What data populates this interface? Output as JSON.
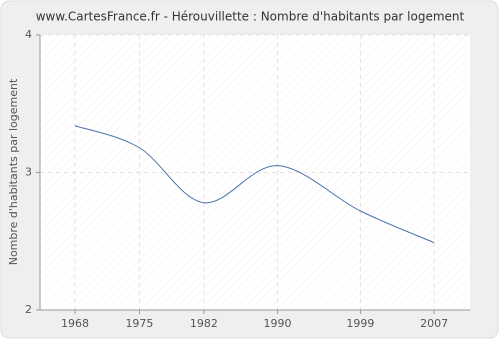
{
  "chart_data": {
    "type": "line",
    "title": "www.CartesFrance.fr - Hérouvillette : Nombre d'habitants par logement",
    "y_label": "Nombre d'habitants par logement",
    "x": [
      1968,
      1975,
      1982,
      1990,
      1999,
      2007
    ],
    "series": [
      {
        "name": "Nombre d'habitants par logement",
        "color": "#4a74a8",
        "values": [
          3.34,
          3.18,
          2.78,
          3.05,
          2.72,
          2.49
        ]
      }
    ],
    "xlim": [
      1964.2,
      2010.9
    ],
    "xticks": [
      1968,
      1975,
      1982,
      1990,
      1999,
      2007
    ],
    "ylim": [
      2,
      4
    ],
    "yticks": [
      2,
      3,
      4
    ],
    "grid": true
  }
}
